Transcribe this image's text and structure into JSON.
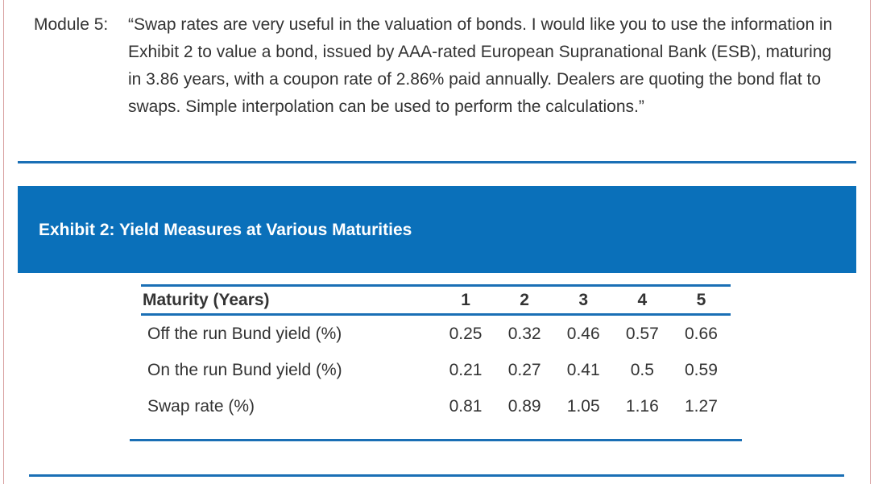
{
  "question": {
    "module_label": "Module 5:",
    "text": "“Swap rates are very useful in the valuation of bonds. I would like you to use the information in Exhibit 2 to value a bond, issued by AAA-rated European Supranational Bank (ESB), maturing in 3.86 years, with a coupon rate of 2.86% paid annually. Dealers are quoting the bond flat to swaps. Simple interpolation can be used to perform the calculations.”"
  },
  "exhibit": {
    "title": "Exhibit 2: Yield Measures at Various Maturities",
    "banner_color": "#0a70ba",
    "rule_color": "#1a6fb5",
    "table": {
      "header_label": "Maturity (Years)",
      "maturities": [
        "1",
        "2",
        "3",
        "4",
        "5"
      ],
      "rows": [
        {
          "label": "Off the run Bund yield (%)",
          "values": [
            "0.25",
            "0.32",
            "0.46",
            "0.57",
            "0.66"
          ]
        },
        {
          "label": "On the run Bund yield (%)",
          "values": [
            "0.21",
            "0.27",
            "0.41",
            "0.5",
            "0.59"
          ]
        },
        {
          "label": "Swap rate (%)",
          "values": [
            "0.81",
            "0.89",
            "1.05",
            "1.16",
            "1.27"
          ]
        }
      ]
    }
  }
}
